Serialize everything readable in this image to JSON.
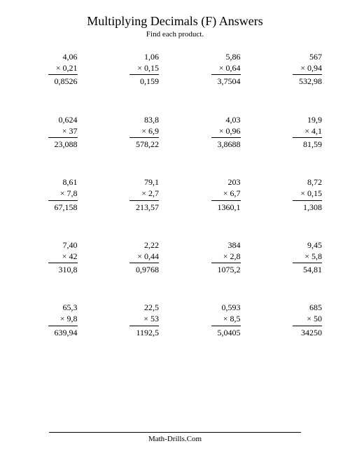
{
  "title": "Multiplying Decimals (F) Answers",
  "subtitle": "Find each product.",
  "footer": "Math-Drills.Com",
  "problems": [
    {
      "a": "4,06",
      "b": "× 0,21",
      "ans": "0,8526"
    },
    {
      "a": "1,06",
      "b": "× 0,15",
      "ans": "0,159"
    },
    {
      "a": "5,86",
      "b": "× 0,64",
      "ans": "3,7504"
    },
    {
      "a": "567",
      "b": "× 0,94",
      "ans": "532,98"
    },
    {
      "a": "0,624",
      "b": "× 37",
      "ans": "23,088"
    },
    {
      "a": "83,8",
      "b": "× 6,9",
      "ans": "578,22"
    },
    {
      "a": "4,03",
      "b": "× 0,96",
      "ans": "3,8688"
    },
    {
      "a": "19,9",
      "b": "× 4,1",
      "ans": "81,59"
    },
    {
      "a": "8,61",
      "b": "× 7,8",
      "ans": "67,158"
    },
    {
      "a": "79,1",
      "b": "× 2,7",
      "ans": "213,57"
    },
    {
      "a": "203",
      "b": "× 6,7",
      "ans": "1360,1"
    },
    {
      "a": "8,72",
      "b": "× 0,15",
      "ans": "1,308"
    },
    {
      "a": "7,40",
      "b": "× 42",
      "ans": "310,8"
    },
    {
      "a": "2,22",
      "b": "× 0,44",
      "ans": "0,9768"
    },
    {
      "a": "384",
      "b": "× 2,8",
      "ans": "1075,2"
    },
    {
      "a": "9,45",
      "b": "× 5,8",
      "ans": "54,81"
    },
    {
      "a": "65,3",
      "b": "× 9,8",
      "ans": "639,94"
    },
    {
      "a": "22,5",
      "b": "× 53",
      "ans": "1192,5"
    },
    {
      "a": "0,593",
      "b": "× 8,5",
      "ans": "5,0405"
    },
    {
      "a": "685",
      "b": "× 50",
      "ans": "34250"
    }
  ]
}
